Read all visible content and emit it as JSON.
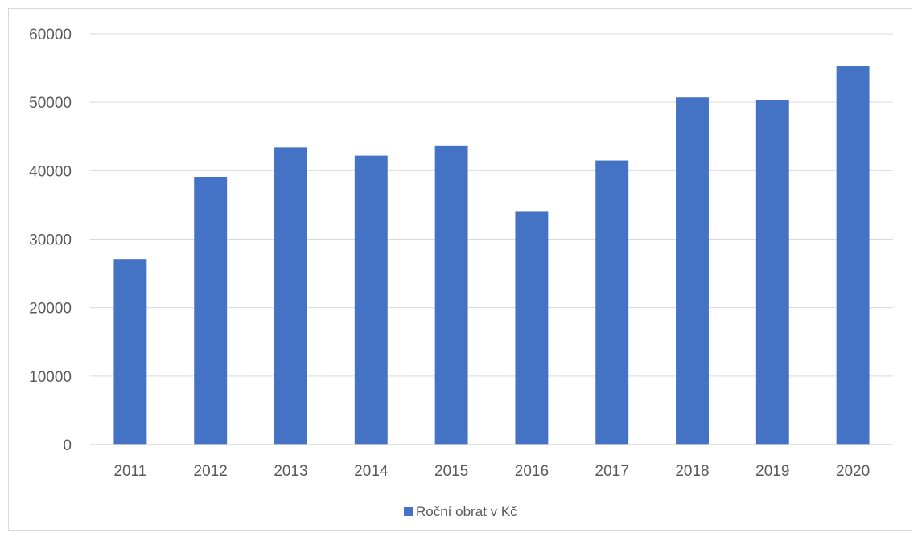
{
  "chart_data": {
    "type": "bar",
    "title": "",
    "xlabel": "",
    "ylabel": "",
    "categories": [
      "2011",
      "2012",
      "2013",
      "2014",
      "2015",
      "2016",
      "2017",
      "2018",
      "2019",
      "2020"
    ],
    "series": [
      {
        "name": "Roční obrat v Kč",
        "color": "#4472C4",
        "values": [
          27100,
          39100,
          43400,
          42200,
          43700,
          34000,
          41500,
          50700,
          50300,
          55300
        ]
      }
    ],
    "ylim": [
      0,
      60000
    ],
    "yticks": [
      "0",
      "10000",
      "20000",
      "30000",
      "40000",
      "50000",
      "60000"
    ],
    "grid": true,
    "legend_position": "bottom"
  }
}
